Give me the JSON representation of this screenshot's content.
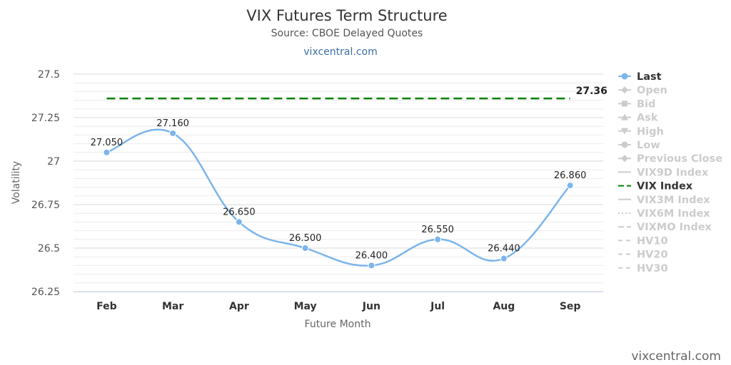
{
  "chart_data": {
    "type": "line",
    "title": "VIX Futures Term Structure",
    "subtitle": "Source: CBOE Delayed Quotes",
    "link_text": "vixcentral.com",
    "credit": "vixcentral.com",
    "xlabel": "Future Month",
    "ylabel": "Volatility",
    "ylim": [
      26.25,
      27.5
    ],
    "yticks": [
      "27.5",
      "27.25",
      "27",
      "26.75",
      "26.5",
      "26.25"
    ],
    "ytick_values": [
      27.5,
      27.25,
      27,
      26.75,
      26.5,
      26.25
    ],
    "categories": [
      "Feb",
      "Mar",
      "Apr",
      "May",
      "Jun",
      "Jul",
      "Aug",
      "Sep"
    ],
    "grid": true,
    "legend_position": "right",
    "series": [
      {
        "name": "Last",
        "color": "#7cb5ec",
        "values": [
          27.05,
          27.16,
          26.65,
          26.5,
          26.4,
          26.55,
          26.44,
          26.86
        ],
        "labels": [
          "27.050",
          "27.160",
          "26.650",
          "26.500",
          "26.400",
          "26.550",
          "26.440",
          "26.860"
        ]
      },
      {
        "name": "VIX Index",
        "color": "#008000",
        "value": 27.36,
        "label": "27.36"
      }
    ],
    "legend": [
      {
        "name": "Last",
        "active": true,
        "symbol": "circle",
        "line": "solid",
        "color": "#7cb5ec"
      },
      {
        "name": "Open",
        "active": false,
        "symbol": "diamond",
        "line": "solid"
      },
      {
        "name": "Bid",
        "active": false,
        "symbol": "square",
        "line": "solid"
      },
      {
        "name": "Ask",
        "active": false,
        "symbol": "triangle",
        "line": "solid"
      },
      {
        "name": "High",
        "active": false,
        "symbol": "triangle-down",
        "line": "solid"
      },
      {
        "name": "Low",
        "active": false,
        "symbol": "circle",
        "line": "solid"
      },
      {
        "name": "Previous Close",
        "active": false,
        "symbol": "diamond",
        "line": "solid"
      },
      {
        "name": "VIX9D Index",
        "active": false,
        "symbol": "none",
        "line": "solid"
      },
      {
        "name": "VIX Index",
        "active": true,
        "symbol": "none",
        "line": "dash",
        "color": "#008000"
      },
      {
        "name": "VIX3M Index",
        "active": false,
        "symbol": "none",
        "line": "solid"
      },
      {
        "name": "VIX6M Index",
        "active": false,
        "symbol": "none",
        "line": "dot"
      },
      {
        "name": "VIXMO Index",
        "active": false,
        "symbol": "none",
        "line": "dash"
      },
      {
        "name": "HV10",
        "active": false,
        "symbol": "none",
        "line": "dashdot"
      },
      {
        "name": "HV20",
        "active": false,
        "symbol": "none",
        "line": "dashdot"
      },
      {
        "name": "HV30",
        "active": false,
        "symbol": "none",
        "line": "dashdot"
      }
    ]
  }
}
